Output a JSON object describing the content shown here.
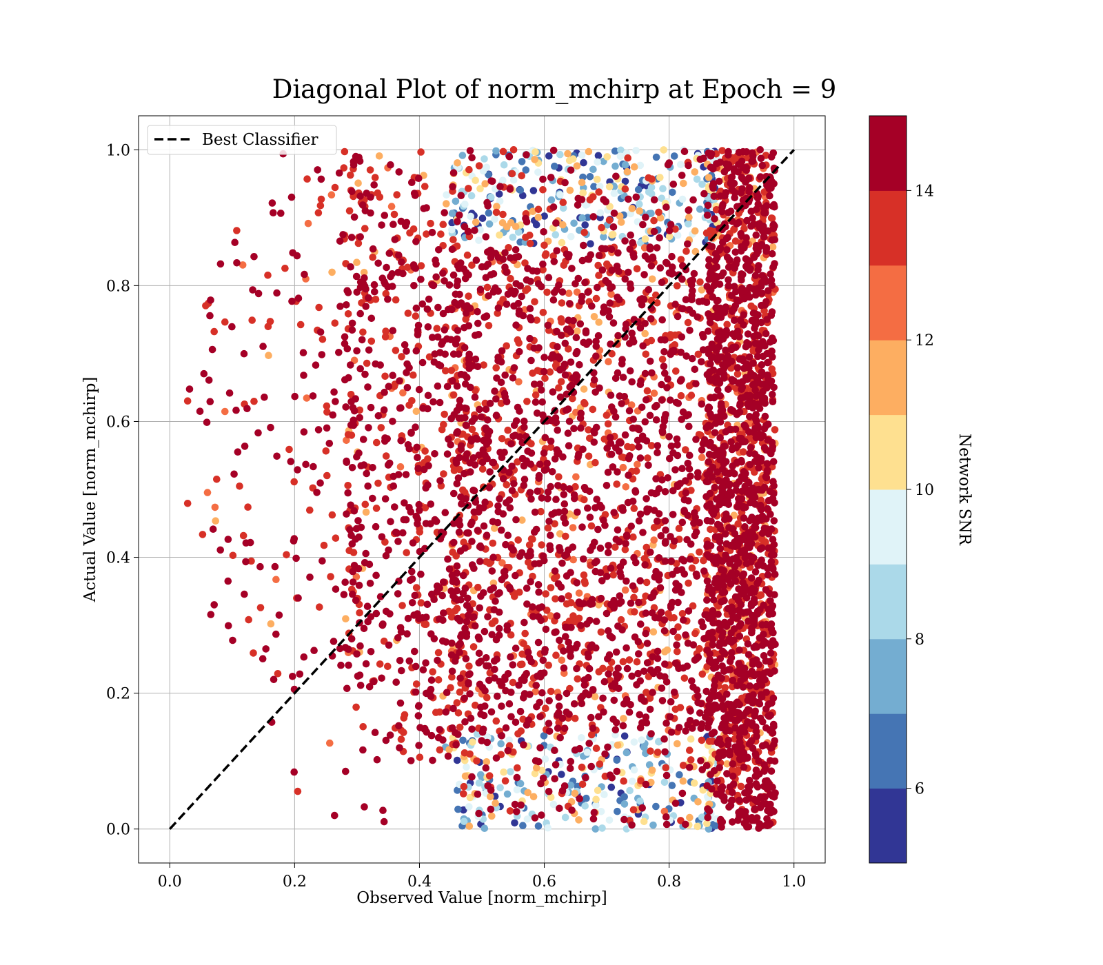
{
  "chart_data": {
    "type": "scatter",
    "title": "Diagonal Plot of norm_mchirp at Epoch = 9",
    "xlabel": "Observed Value [norm_mchirp]",
    "ylabel": "Actual Value [norm_mchirp]",
    "xlim": [
      -0.05,
      1.05
    ],
    "ylim": [
      -0.05,
      1.05
    ],
    "xticks": [
      0.0,
      0.2,
      0.4,
      0.6,
      0.8,
      1.0
    ],
    "yticks": [
      0.0,
      0.2,
      0.4,
      0.6,
      0.8,
      1.0
    ],
    "xtick_labels": [
      "0.0",
      "0.2",
      "0.4",
      "0.6",
      "0.8",
      "1.0"
    ],
    "ytick_labels": [
      "0.0",
      "0.2",
      "0.4",
      "0.6",
      "0.8",
      "1.0"
    ],
    "grid": true,
    "legend": {
      "position": "top-left",
      "entries": [
        {
          "label": "Best Classifier",
          "style": "dashed-black-line"
        }
      ]
    },
    "reference_line": {
      "name": "Best Classifier",
      "x": [
        0.0,
        1.0
      ],
      "y": [
        0.0,
        1.0
      ],
      "color": "#000000",
      "style": "dashed"
    },
    "point_density_description": "thousands of points; observed values concentrated between 0.45 and 0.97 with densest band near 0.9–0.96",
    "colorbar": {
      "label": "Network SNR",
      "range": [
        5,
        15
      ],
      "ticks": [
        6,
        8,
        10,
        12,
        14
      ],
      "tick_labels": [
        "6",
        "8",
        "10",
        "12",
        "14"
      ],
      "colors": [
        "#313695",
        "#4575b4",
        "#74add1",
        "#abd9e9",
        "#e0f3f8",
        "#fee090",
        "#fdae61",
        "#f46d43",
        "#d73027",
        "#a50026"
      ]
    }
  }
}
